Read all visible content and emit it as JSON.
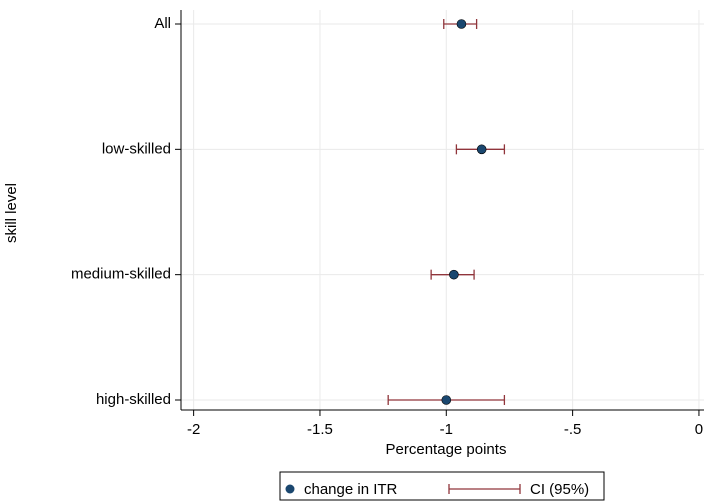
{
  "chart_data": {
    "type": "dot-ci",
    "x_label": "Percentage points",
    "y_label": "skill level",
    "categories": [
      "All",
      "low-skilled",
      "medium-skilled",
      "high-skilled"
    ],
    "series": [
      {
        "name": "change in ITR",
        "color": "#1a476f",
        "values": [
          -0.94,
          -0.86,
          -0.97,
          -1.0
        ]
      }
    ],
    "ci": {
      "name": "CI (95%)",
      "color": "#90353b",
      "lower": [
        -1.01,
        -0.96,
        -1.06,
        -1.23
      ],
      "upper": [
        -0.88,
        -0.77,
        -0.89,
        -0.77
      ]
    },
    "xlim": [
      -2.05,
      0.02
    ],
    "xticks": [
      -2,
      -1.5,
      -1,
      {
        "value": -0.5,
        "label": "-.5"
      },
      0
    ],
    "grid": true
  }
}
